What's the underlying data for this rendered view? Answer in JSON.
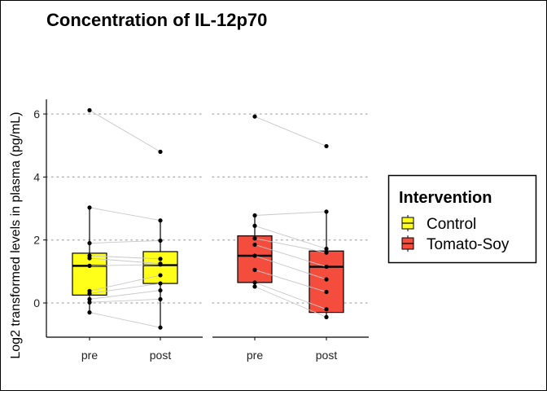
{
  "chart_data": {
    "type": "box",
    "title": "Concentration of IL-12p70",
    "xlabel": "",
    "ylabel": "Log2 transformed levels in plasma (pg/mL)",
    "ylim": [
      -1.1,
      6.5
    ],
    "yticks": [
      0,
      2,
      4,
      6
    ],
    "grid": "horizontal dotted at y ticks",
    "categories": [
      "pre",
      "post"
    ],
    "legend": {
      "title": "Intervention",
      "position": "right",
      "entries": [
        "Control",
        "Tomato-Soy"
      ]
    },
    "panels": [
      {
        "group": "Control",
        "color": "#FFFF1A",
        "boxes": {
          "pre": {
            "q1": 0.25,
            "median": 1.18,
            "q3": 1.58,
            "whisker_low": -0.3,
            "whisker_high": 3.03
          },
          "post": {
            "q1": 0.62,
            "median": 1.2,
            "q3": 1.63,
            "whisker_low": -0.78,
            "whisker_high": 2.62
          }
        },
        "paired_points": [
          [
            6.12,
            4.8
          ],
          [
            3.03,
            2.62
          ],
          [
            1.9,
            1.98
          ],
          [
            1.5,
            1.4
          ],
          [
            1.42,
            1.25
          ],
          [
            1.18,
            1.22
          ],
          [
            0.38,
            0.88
          ],
          [
            0.3,
            0.62
          ],
          [
            0.12,
            0.4
          ],
          [
            0.02,
            0.12
          ],
          [
            -0.3,
            -0.78
          ]
        ]
      },
      {
        "group": "Tomato-Soy",
        "color": "#F54D3D",
        "boxes": {
          "pre": {
            "q1": 0.65,
            "median": 1.5,
            "q3": 2.13,
            "whisker_low": 0.52,
            "whisker_high": 2.78
          },
          "post": {
            "q1": -0.3,
            "median": 1.15,
            "q3": 1.65,
            "whisker_low": -0.45,
            "whisker_high": 2.9
          }
        },
        "paired_points": [
          [
            5.92,
            4.98
          ],
          [
            2.78,
            2.9
          ],
          [
            2.45,
            1.72
          ],
          [
            2.05,
            1.6
          ],
          [
            1.85,
            1.15
          ],
          [
            1.5,
            0.75
          ],
          [
            1.05,
            0.35
          ],
          [
            0.65,
            -0.2
          ],
          [
            0.52,
            -0.45
          ]
        ]
      }
    ]
  }
}
